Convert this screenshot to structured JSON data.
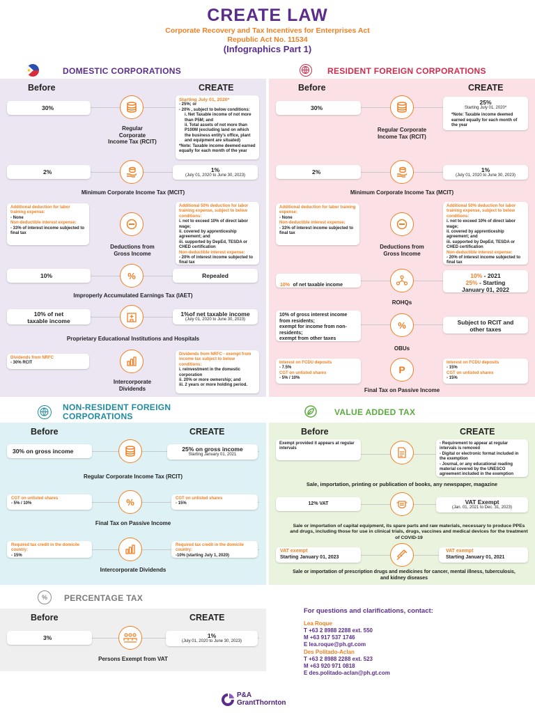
{
  "header": {
    "title": "CREATE LAW",
    "subtitle1": "Corporate Recovery and Tax Incentives for Enterprises Act",
    "subtitle2": "Republic Act No. 11534",
    "part": "(Infographics Part 1)"
  },
  "colors": {
    "purple": "#5a2d8a",
    "orange": "#f07f22",
    "red": "#d32a4a",
    "teal": "#1e8aa0",
    "green": "#5aab3f",
    "domestic_bg": "#ece6f3",
    "rfc_bg": "#fbe1e6",
    "nrfc_bg": "#def1f4",
    "vat_bg": "#eaf3dd",
    "pt_bg": "#efefef"
  },
  "col": {
    "before": "Before",
    "create": "CREATE"
  },
  "domestic": {
    "title": "DOMESTIC CORPORATIONS",
    "rcit": {
      "before": "30%",
      "label1": "Regular",
      "label2": "Corporate",
      "label3": "Income Tax (RCIT)",
      "c1": "Starting July 01, 2020*",
      "c2": "- 25%; or",
      "c3": "- 20% , subject to below conditions:",
      "c4": "i. Net Taxable income of not more than P5M; and",
      "c5": "ii. Total assets of not more than P100M (excluding land on which the business entity's office, plant and equipment are situated)",
      "c6": "*Note: Taxable income deemed earned equally for each month of the year"
    },
    "mcit": {
      "before": "2%",
      "create": "1%",
      "create_sub": "(July 01, 2020 to June 30, 2023)",
      "label": "Minimum Corporate Income Tax (MCIT)"
    },
    "ded": {
      "b1": "Additional deduction for labor training expense:",
      "b2": "- None",
      "b3": "Non-deductible interest expense:",
      "b4": "- 33% of interest income subjected to final tax",
      "label1": "Deductions from",
      "label2": "Gross Income",
      "c1": "Additional 50% deduction for labor training expense, subject to below conditions:",
      "c2": "i. not to exceed 10% of direct labor wage;",
      "c3": "ii. covered by apprenticeship agreement; and",
      "c4": "iii. supported by DepEd, TESDA or CHED certification",
      "c5": "Non-deductible interest expense:",
      "c6": "- 20% of interest income subjected to final tax"
    },
    "iaet": {
      "before": "10%",
      "create": "Repealed",
      "label": "Improperly Accumulated Earnings Tax (IAET)"
    },
    "edu": {
      "before1": "10% of net",
      "before2": "taxable income",
      "create": "1%of net taxable income",
      "create_sub": "(July 01, 2020 to June 30, 2023)",
      "label": "Proprietary Educational Institutions and Hospitals"
    },
    "divs": {
      "b1": "Dividends from NRFC",
      "b2": "- 30% RCIT",
      "label1": "Intercorporate",
      "label2": "Dividends",
      "c1": "Dividends from NRFC - exempt from income tax subject to below conditions:",
      "c2": "i. reinvestment in the domestic corporation",
      "c3": "ii. 20% or more ownership; and",
      "c4": "iii. 2 years or more holding period."
    }
  },
  "rfc": {
    "title": "RESIDENT FOREIGN CORPORATIONS",
    "rcit": {
      "before": "30%",
      "create": "25%",
      "create_sub": "Starting July 01, 2020*",
      "note": "*Note: Taxable income deemed earned equally for each month of the year",
      "label1": "Regular Corporate",
      "label2": "Income Tax (RCIT)"
    },
    "mcit": {
      "before": "2%",
      "create": "1%",
      "create_sub": "(July 01, 2020 to June 30, 2023)",
      "label": "Minimum Corporate Income Tax (MCIT)"
    },
    "ded": {
      "b1": "Additional deduction for labor training expense:",
      "b2": "- None",
      "b3": "Non-deductible interest expense:",
      "b4": "- 33% of interest income subjected to final tax",
      "label1": "Deductions from",
      "label2": "Gross Income",
      "c1": "Additional 50% deduction for labor training expense, subject to below conditions:",
      "c2": "i. not to exceed 10% of direct labor wage;",
      "c3": "ii. covered by apprenticeship agreement; and",
      "c4": "iii. supported by DepEd, TESDA or CHED certification",
      "c5": "Non-deductible interest expense:",
      "c6": "- 20% of interest income subjected to final tax"
    },
    "rohq": {
      "before_a": "10%",
      "before_b": "of net taxable income",
      "c1a": "10%",
      "c1b": " - 2021",
      "c2a": "25%",
      "c2b": " - Starting",
      "c3": "January 01, 2022",
      "label": "ROHQs"
    },
    "obu": {
      "b1": "10% of gross interest income from residents;",
      "b2": "exempt for income from non- residents;",
      "b3": "exempt from other taxes",
      "create1": "Subject to RCIT and",
      "create2": "other taxes",
      "label": "OBUs"
    },
    "ftpi": {
      "b1": "Interest on FCDU deposits",
      "b2": "- 7.5%",
      "b3": "CGT on unlisted shares",
      "b4": "- 5% / 10%",
      "c1": "Interest on FCDU deposits",
      "c2": "- 15%",
      "c3": "CGT on unlisted shares",
      "c4": "- 15%",
      "label": "Final Tax on Passive Income"
    }
  },
  "nrfc": {
    "title1": "NON-RESIDENT FOREIGN",
    "title2": "CORPORATIONS",
    "rcit": {
      "before": "30% on gross income",
      "create": "25% on gross income",
      "create_sub": "Starting January 01, 2021",
      "label": "Regular Corporate Income Tax (RCIT)"
    },
    "ftpi": {
      "b1": "CGT on unlisted shares",
      "b2": "- 5% / 10%",
      "c1": "CGT on unlisted shares",
      "c2": "- 15%",
      "label": "Final Tax on Passive Income"
    },
    "divs": {
      "b1": "Required tax credit in the domicile country:",
      "b2": "- 15%",
      "c1": "Required tax credit in the domicile country:",
      "c2": "-10% (starting July 1, 2020)",
      "label": "Intercorporate Dividends"
    }
  },
  "vat": {
    "title": "VALUE ADDED TAX",
    "books": {
      "b1": "Exempt provided it appears at regular intervals",
      "c1": "- Requirement to appear at regular intervals is removed",
      "c2": "- Digital or electronic format included in the exemption",
      "c3": "- Journal, or any educational reading material covered by the UNESCO agreement included in the exemption",
      "label": "Sale, importation, printing or publication of books, any newspaper, magazine"
    },
    "ppe": {
      "before": "12% VAT",
      "create": "VAT Exempt",
      "create_sub": "(Jan. 01, 2021 to Dec. 31, 2023)",
      "label": "Sale or importation of capital equipment, its spare parts and raw materials, necessary to produce PPEs and drugs, including those for use in clinical trials, drugs, vaccines and medical devices for the treatment of COVID-19"
    },
    "drugs": {
      "b1": "VAT exempt",
      "b2": "Starting January 01, 2023",
      "c1": "VAT exempt",
      "c2": "Starting January 01, 2021",
      "label": "Sale or importation of prescription drugs and medicines for cancer, mental illness, tuberculosis, and kidney diseases"
    }
  },
  "pt": {
    "title": "PERCENTAGE TAX",
    "before": "3%",
    "create": "1%",
    "create_sub": "(July 01, 2020 to June 30, 2023)",
    "label": "Persons Exempt from VAT"
  },
  "contact": {
    "title": "For questions and clarifications, contact:",
    "p1": {
      "name": "Lea Roque",
      "t": "T +63 2 8988 2288 ext. 550",
      "m": "M +63 917 537 1746",
      "e": "E lea.roque@ph.gt.com"
    },
    "p2": {
      "name": "Des Politado-Aclan",
      "t": "T +63 2 8988 2288 ext. 523",
      "m": "M +63 920 971 0818",
      "e": "E des.politado-aclan@ph.gt.com"
    }
  },
  "logo": {
    "line1": "P&A",
    "line2": "GrantThornton"
  }
}
